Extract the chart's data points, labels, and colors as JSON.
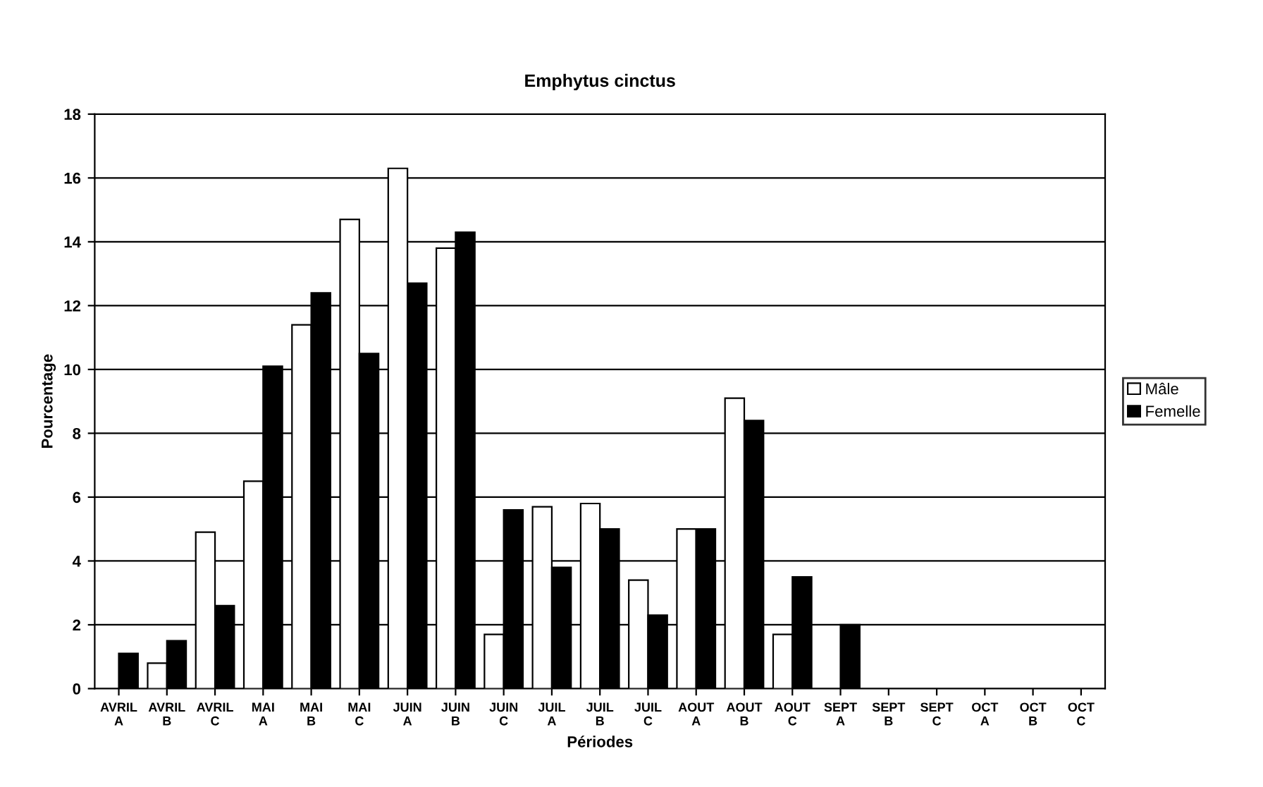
{
  "chart_data": {
    "type": "bar",
    "title": "Emphytus cinctus",
    "xlabel": "Périodes",
    "ylabel": "Pourcentage",
    "categories": [
      "AVRIL\nA",
      "AVRIL\nB",
      "AVRIL\nC",
      "MAI\nA",
      "MAI\nB",
      "MAI\nC",
      "JUIN\nA",
      "JUIN\nB",
      "JUIN\nC",
      "JUIL\nA",
      "JUIL\nB",
      "JUIL\nC",
      "AOUT\nA",
      "AOUT\nB",
      "AOUT\nC",
      "SEPT\nA",
      "SEPT\nB",
      "SEPT\nC",
      "OCT\nA",
      "OCT\nB",
      "OCT\nC"
    ],
    "series": [
      {
        "name": "Mâle",
        "color": "#ffffff",
        "values": [
          0,
          0.8,
          4.9,
          6.5,
          11.4,
          14.7,
          16.3,
          13.8,
          1.7,
          5.7,
          5.8,
          3.4,
          5.0,
          9.1,
          1.7,
          0,
          0,
          0,
          0,
          0,
          0
        ]
      },
      {
        "name": "Femelle",
        "color": "#000000",
        "values": [
          1.1,
          1.5,
          2.6,
          10.1,
          12.4,
          10.5,
          12.7,
          14.3,
          5.6,
          3.8,
          5.0,
          2.3,
          5.0,
          8.4,
          3.5,
          2.0,
          0,
          0,
          0,
          0,
          0
        ]
      }
    ],
    "ylim": [
      0,
      18
    ],
    "yticks": [
      0,
      2,
      4,
      6,
      8,
      10,
      12,
      14,
      16,
      18
    ],
    "grid": "y",
    "legend": "right"
  }
}
